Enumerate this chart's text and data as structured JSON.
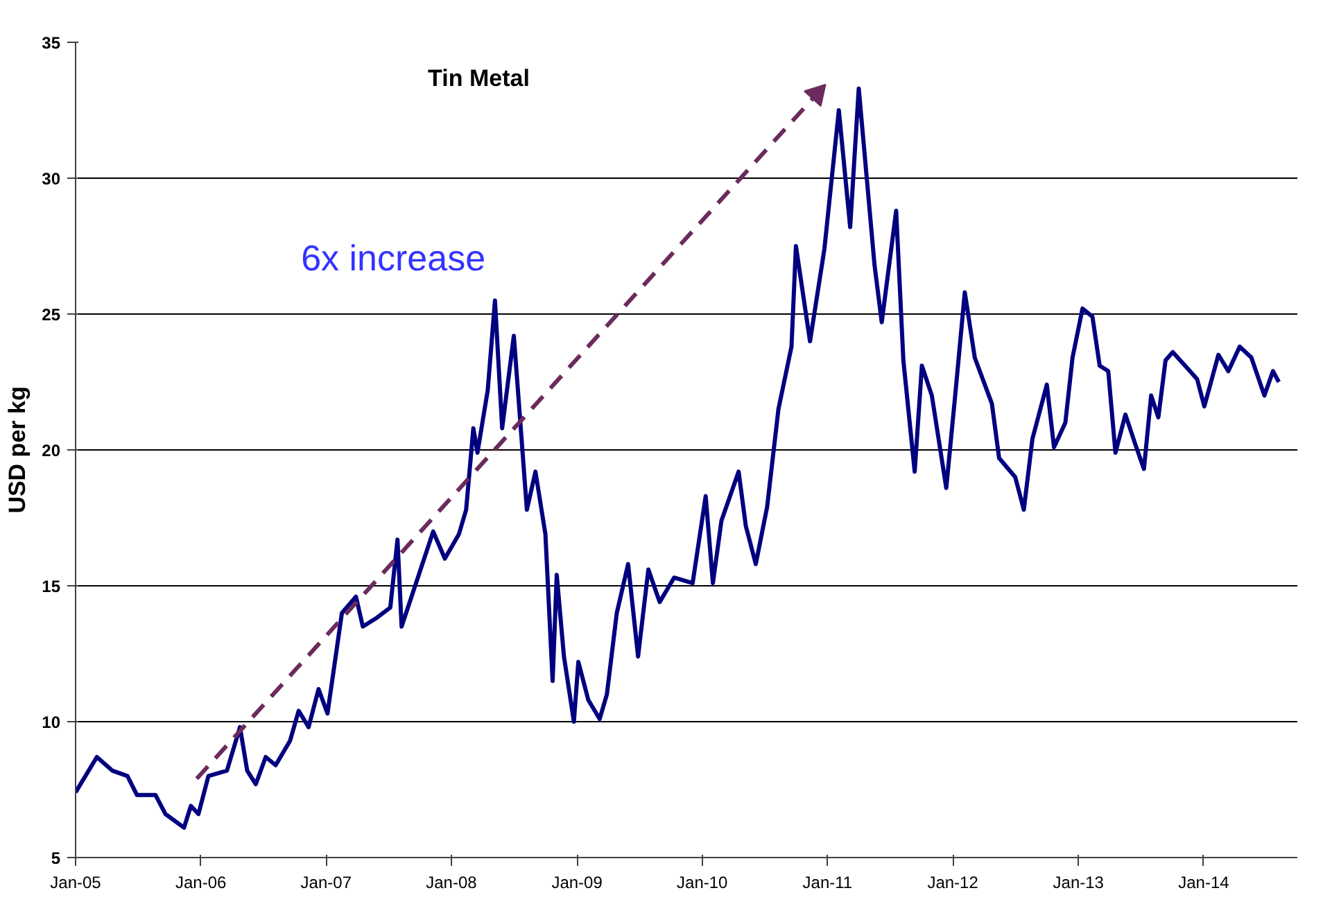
{
  "chart_data": {
    "type": "line",
    "title": "Tin Metal",
    "ylabel": "USD per kg",
    "annotations": [
      "6x increase"
    ],
    "xlim": [
      "2005-01-01",
      "2014-10-01"
    ],
    "xticks": [
      {
        "value": "2005-01-01",
        "label": "Jan-05"
      },
      {
        "value": "2006-01-01",
        "label": "Jan-06"
      },
      {
        "value": "2007-01-01",
        "label": "Jan-07"
      },
      {
        "value": "2008-01-01",
        "label": "Jan-08"
      },
      {
        "value": "2009-01-01",
        "label": "Jan-09"
      },
      {
        "value": "2010-01-01",
        "label": "Jan-10"
      },
      {
        "value": "2011-01-01",
        "label": "Jan-11"
      },
      {
        "value": "2012-01-01",
        "label": "Jan-12"
      },
      {
        "value": "2013-01-01",
        "label": "Jan-13"
      },
      {
        "value": "2014-01-01",
        "label": "Jan-14"
      }
    ],
    "ylim": [
      5,
      35
    ],
    "yticks": [
      5,
      10,
      15,
      20,
      25,
      30,
      35
    ],
    "grid": "y",
    "line_style": "solid",
    "series": [
      {
        "color": "#000080",
        "x": [
          "2005-01-01",
          "2005-03-04",
          "2005-04-18",
          "2005-06-01",
          "2005-06-29",
          "2005-08-22",
          "2005-09-20",
          "2005-11-13",
          "2005-12-03",
          "2005-12-25",
          "2006-01-23",
          "2006-03-18",
          "2006-04-25",
          "2006-05-16",
          "2006-06-10",
          "2006-07-09",
          "2006-08-07",
          "2006-09-18",
          "2006-10-13",
          "2006-11-11",
          "2006-12-10",
          "2007-01-05",
          "2007-02-16",
          "2007-03-29",
          "2007-04-18",
          "2007-05-26",
          "2007-07-07",
          "2007-07-28",
          "2007-08-09",
          "2007-09-28",
          "2007-11-09",
          "2007-12-13",
          "2008-01-23",
          "2008-02-13",
          "2008-03-05",
          "2008-03-17",
          "2008-04-16",
          "2008-05-07",
          "2008-05-28",
          "2008-07-01",
          "2008-08-08",
          "2008-09-02",
          "2008-10-01",
          "2008-10-22",
          "2008-11-03",
          "2008-11-24",
          "2008-12-23",
          "2009-01-05",
          "2009-02-03",
          "2009-03-08",
          "2009-03-29",
          "2009-04-27",
          "2009-05-30",
          "2009-06-28",
          "2009-07-28",
          "2009-08-30",
          "2009-10-11",
          "2009-12-04",
          "2010-01-11",
          "2010-02-01",
          "2010-02-26",
          "2010-04-17",
          "2010-05-08",
          "2010-06-06",
          "2010-07-09",
          "2010-08-11",
          "2010-09-18",
          "2010-10-01",
          "2010-11-11",
          "2010-12-23",
          "2011-02-03",
          "2011-03-08",
          "2011-04-02",
          "2011-05-18",
          "2011-06-08",
          "2011-07-20",
          "2011-08-10",
          "2011-09-12",
          "2011-10-03",
          "2011-11-01",
          "2011-12-13",
          "2012-01-11",
          "2012-02-05",
          "2012-03-05",
          "2012-04-24",
          "2012-05-15",
          "2012-07-01",
          "2012-07-26",
          "2012-08-20",
          "2012-10-01",
          "2012-10-22",
          "2012-11-24",
          "2012-12-15",
          "2013-01-13",
          "2013-02-11",
          "2013-03-04",
          "2013-03-29",
          "2013-04-19",
          "2013-05-18",
          "2013-06-16",
          "2013-07-11",
          "2013-08-01",
          "2013-08-22",
          "2013-09-12",
          "2013-10-03",
          "2013-11-22",
          "2013-12-13",
          "2014-01-03",
          "2014-02-13",
          "2014-03-14",
          "2014-04-16",
          "2014-05-20",
          "2014-06-27",
          "2014-07-22",
          "2014-08-08"
        ],
        "values": [
          7.4,
          8.7,
          8.2,
          8.0,
          7.3,
          7.3,
          6.6,
          6.1,
          6.9,
          6.6,
          8.0,
          8.2,
          9.8,
          8.2,
          7.7,
          8.7,
          8.4,
          9.3,
          10.4,
          9.8,
          11.2,
          10.3,
          14.0,
          14.6,
          13.5,
          13.8,
          14.2,
          16.7,
          13.5,
          15.4,
          17.0,
          16.0,
          16.9,
          17.8,
          20.8,
          19.9,
          22.2,
          25.5,
          20.8,
          24.2,
          17.8,
          19.2,
          16.9,
          11.5,
          15.4,
          12.4,
          10.0,
          12.2,
          10.8,
          10.1,
          11.0,
          14.0,
          15.8,
          12.4,
          15.6,
          14.4,
          15.3,
          15.1,
          18.3,
          15.1,
          17.4,
          19.2,
          17.2,
          15.8,
          17.9,
          21.5,
          23.8,
          27.5,
          24.0,
          27.4,
          32.5,
          28.2,
          33.3,
          26.8,
          24.7,
          28.8,
          23.3,
          19.2,
          23.1,
          22.0,
          18.6,
          22.4,
          25.8,
          23.4,
          21.7,
          19.7,
          19.0,
          17.8,
          20.4,
          22.4,
          20.1,
          21.0,
          23.4,
          25.2,
          24.9,
          23.1,
          22.9,
          19.9,
          21.3,
          20.2,
          19.3,
          22.0,
          21.2,
          23.3,
          23.6,
          22.9,
          22.6,
          21.6,
          23.5,
          22.9,
          23.8,
          23.4,
          22.0,
          22.9,
          22.5
        ]
      },
      {
        "color": "#6b2b5c",
        "type": "line",
        "line_style": "dashed",
        "x": [
          "2005-12-20",
          "2010-12-01"
        ],
        "values": [
          7.9,
          33.1
        ]
      }
    ]
  }
}
